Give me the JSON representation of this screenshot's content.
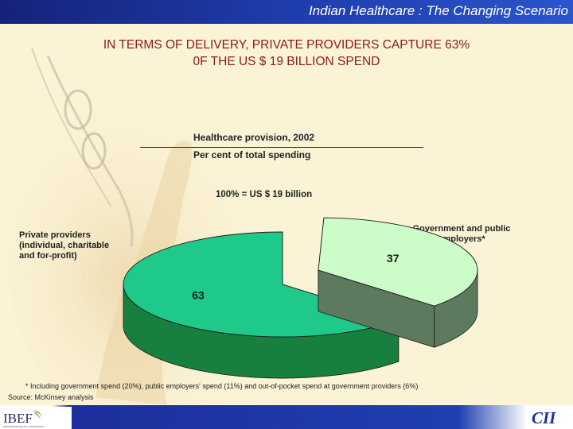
{
  "header": {
    "slide_title": "Indian Healthcare : The Changing Scenario"
  },
  "headline": {
    "line1": "IN TERMS OF DELIVERY, PRIVATE PROVIDERS CAPTURE 63%",
    "line2": "0F THE US $ 19 BILLION SPEND"
  },
  "chart_data": {
    "type": "pie",
    "title": "Healthcare provision, 2002",
    "subtitle": "Per cent of total spending",
    "total_label": "100% = US $ 19 billion",
    "slices": [
      {
        "label_lines": [
          "Private providers",
          "(individual, charitable",
          "and for-profit)"
        ],
        "value": 63,
        "value_label": "63",
        "color_top": "#1fc98a",
        "color_side": "#17803f"
      },
      {
        "label_lines": [
          "Government and public",
          "employers*"
        ],
        "value": 37,
        "value_label": "37",
        "color_top": "#ccfcc8",
        "color_side": "#5e7a5e",
        "exploded": true
      }
    ],
    "style": "3d-exploded",
    "legend": "outside-labels"
  },
  "footer": {
    "footnote": "* Including government spend (20%), public employers' spend (11%) and out-of-pocket spend at government providers (6%)",
    "source": "Source:  McKinsey analysis"
  },
  "logos": {
    "left": "IBEF",
    "left_tagline": "INDIA BRAND EQUITY FOUNDATION",
    "right": "CII"
  },
  "colors": {
    "header_bar": "#1f3fb0",
    "headline": "#8b1a1a",
    "background": "#fbf3d6"
  }
}
